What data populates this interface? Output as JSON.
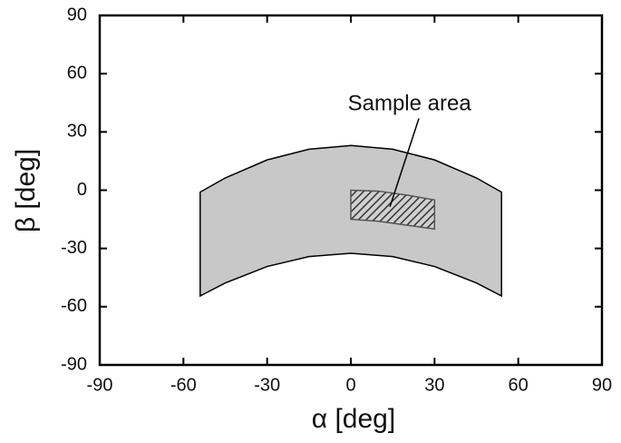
{
  "chart_data": {
    "type": "region",
    "xlabel": "α [deg]",
    "ylabel": "β [deg]",
    "xlim": [
      -90,
      90
    ],
    "ylim": [
      -90,
      90
    ],
    "xticks": [
      -90,
      -60,
      -30,
      0,
      30,
      60,
      90
    ],
    "yticks": [
      -90,
      -60,
      -30,
      0,
      30,
      60,
      90
    ],
    "regions": [
      {
        "color": "#c8c8c8",
        "hatch": false,
        "x": [
          -54,
          -45,
          -30,
          -15,
          0,
          15,
          30,
          45,
          54
        ],
        "upper": [
          -1,
          6.3,
          15.6,
          21.1,
          23,
          21.1,
          15.6,
          6.3,
          -1
        ],
        "lower": [
          -54.5,
          -47.8,
          -39.3,
          -34.2,
          -32.5,
          -34.2,
          -39.3,
          -47.8,
          -54.5
        ]
      },
      {
        "color": "#555555",
        "hatch": true,
        "x": [
          0,
          10,
          20,
          30
        ],
        "upper": [
          0,
          -0.5,
          -2.5,
          -5
        ],
        "lower": [
          -15,
          -16,
          -18,
          -20
        ]
      }
    ],
    "annotations": [
      {
        "text": "Sample area",
        "x": 21,
        "y": 44,
        "line_x": [
          24.4,
          14
        ],
        "line_y": [
          37,
          -8.6
        ]
      }
    ]
  }
}
